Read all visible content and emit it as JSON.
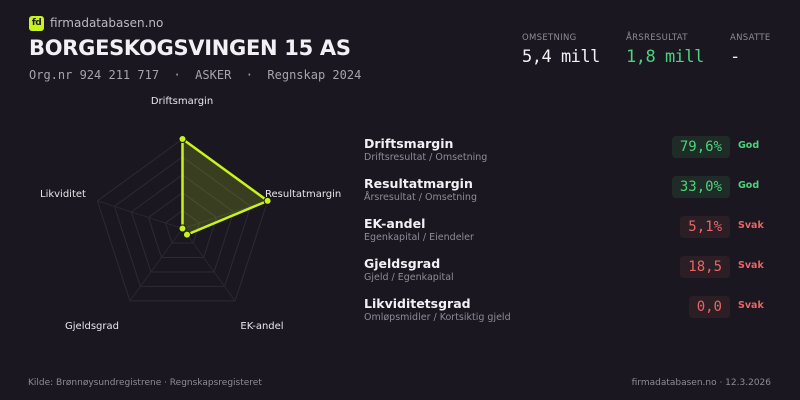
{
  "header": {
    "logo_text": "fd",
    "site": "firmadatabasen.no",
    "company": "BORGESKOGSVINGEN 15 AS",
    "subtitle": "Org.nr 924 211 717  ·  ASKER  ·  Regnskap 2024"
  },
  "kpis": [
    {
      "label": "OMSETNING",
      "value": "5,4 mill",
      "color": "#f2f0f4"
    },
    {
      "label": "ÅRSRESULTAT",
      "value": "1,8 mill",
      "color": "#4ad37a"
    },
    {
      "label": "ANSATTE",
      "value": "-",
      "color": "#f2f0f4"
    }
  ],
  "chart_data": {
    "type": "radar",
    "axes": [
      "Driftsmargin",
      "Resultatmargin",
      "EK-andel",
      "Gjeldsgrad",
      "Likviditet"
    ],
    "values": [
      1,
      1,
      0.085,
      0,
      0
    ],
    "range": [
      0,
      1
    ],
    "rings": 5,
    "color": "#c8f31d"
  },
  "metrics": [
    {
      "name": "Driftsmargin",
      "desc": "Driftsresultat / Omsetning",
      "value": "79,6%",
      "status": "God",
      "tone": "good"
    },
    {
      "name": "Resultatmargin",
      "desc": "Årsresultat / Omsetning",
      "value": "33,0%",
      "status": "God",
      "tone": "good"
    },
    {
      "name": "EK-andel",
      "desc": "Egenkapital / Eiendeler",
      "value": "5,1%",
      "status": "Svak",
      "tone": "bad"
    },
    {
      "name": "Gjeldsgrad",
      "desc": "Gjeld / Egenkapital",
      "value": "18,5",
      "status": "Svak",
      "tone": "bad"
    },
    {
      "name": "Likviditetsgrad",
      "desc": "Omløpsmidler / Kortsiktig gjeld",
      "value": "0,0",
      "status": "Svak",
      "tone": "bad"
    }
  ],
  "footer": {
    "source": "Kilde: Brønnøysundregistrene · Regnskapsregisteret",
    "right": "firmadatabasen.no · 12.3.2026"
  }
}
